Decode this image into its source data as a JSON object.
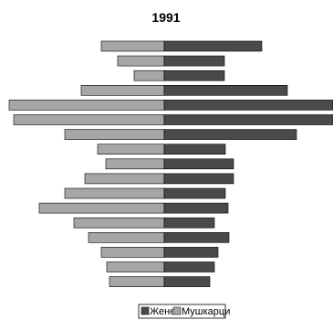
{
  "chart_data": {
    "type": "bar",
    "orientation": "horizontal-diverging",
    "title": "1991",
    "xlabel": "",
    "ylabel": "",
    "categories": [
      "",
      "",
      "",
      "",
      "",
      "",
      "",
      "",
      "",
      "",
      "",
      "",
      "",
      "",
      "",
      "",
      ""
    ],
    "xlim": [
      -170,
      185
    ],
    "grid": false,
    "legend_position": "bottom-right",
    "series": [
      {
        "name": "Жене",
        "color": "#4a4a4a",
        "side": "right",
        "values": [
          107,
          66,
          66,
          135,
          185,
          185,
          145,
          67,
          76,
          76,
          67,
          70,
          55,
          71,
          59,
          55,
          50
        ]
      },
      {
        "name": "Мушкарци",
        "color": "#a6a6a6",
        "side": "left",
        "values": [
          69,
          51,
          33,
          91,
          170,
          165,
          109,
          73,
          64,
          87,
          109,
          137,
          99,
          83,
          69,
          63,
          60
        ]
      }
    ]
  }
}
